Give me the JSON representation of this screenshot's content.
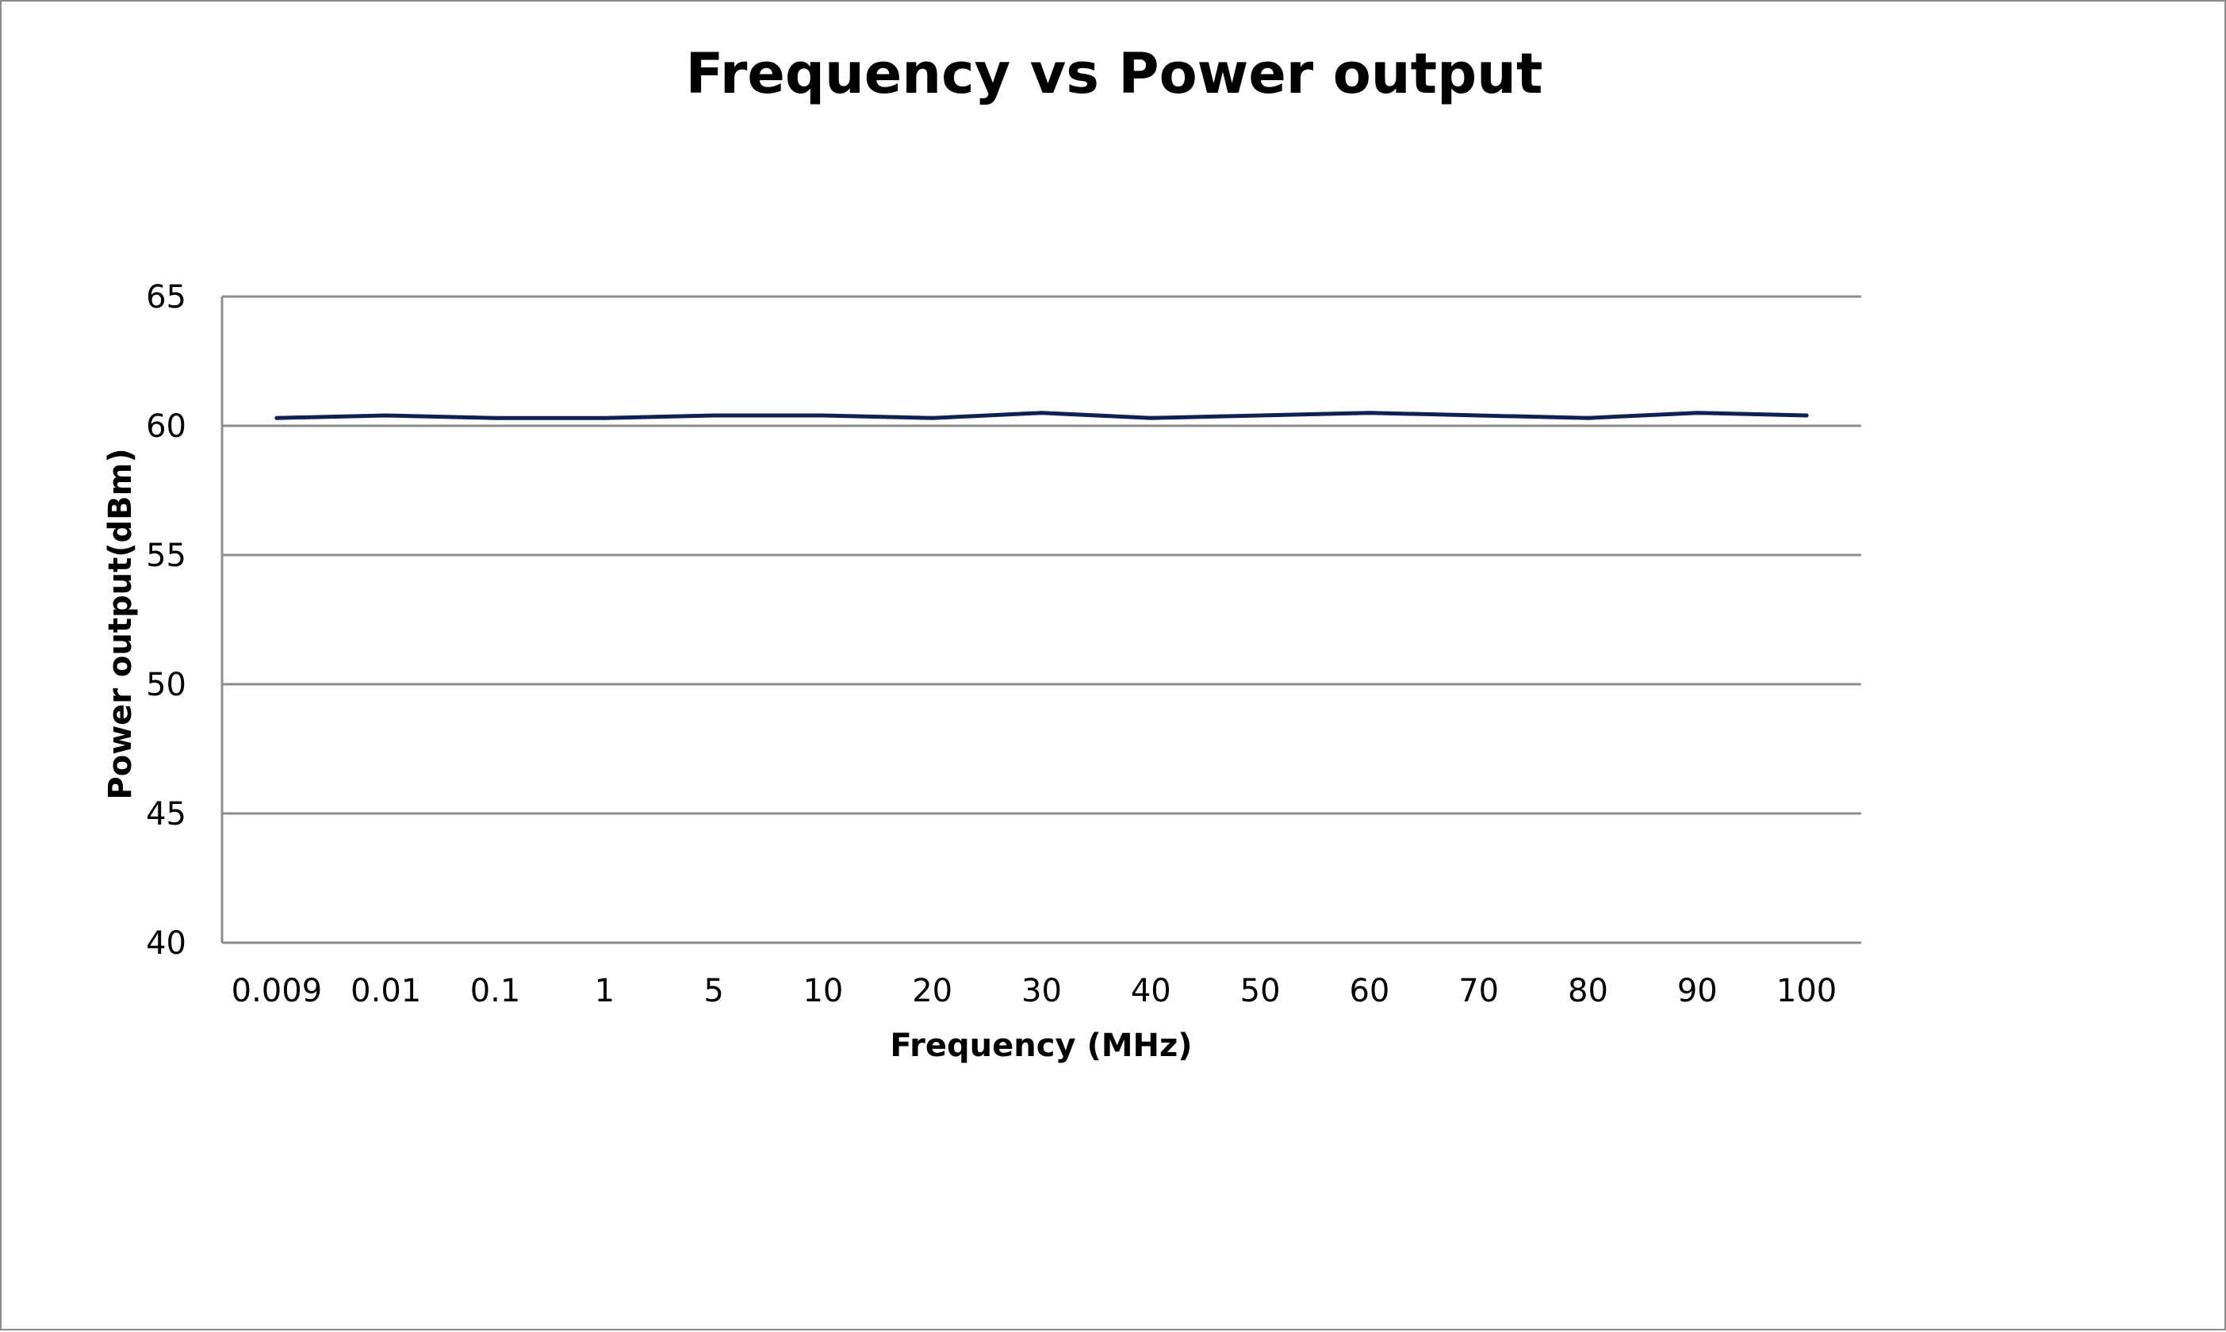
{
  "chart_data": {
    "type": "line",
    "title": "Frequency vs Power output",
    "xlabel": "Frequency (MHz)",
    "ylabel": "Power output(dBm)",
    "categories": [
      "0.009",
      "0.01",
      "0.1",
      "1",
      "5",
      "10",
      "20",
      "30",
      "40",
      "50",
      "60",
      "70",
      "80",
      "90",
      "100"
    ],
    "series": [
      {
        "values": [
          60.3,
          60.4,
          60.3,
          60.3,
          60.4,
          60.4,
          60.3,
          60.5,
          60.3,
          60.4,
          60.5,
          60.4,
          60.3,
          60.5,
          60.4
        ]
      }
    ],
    "ylim": [
      40,
      65
    ],
    "yticks": [
      40,
      45,
      50,
      55,
      60,
      65
    ],
    "grid": true,
    "legend": "none",
    "colors": {
      "line": "#0e2152",
      "grid": "#8c8c8c",
      "axis": "#8c8c8c"
    }
  }
}
